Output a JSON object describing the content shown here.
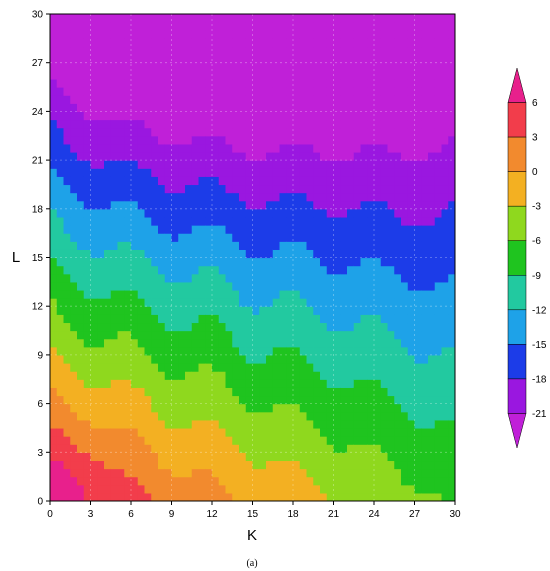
{
  "chart_data": {
    "type": "heatmap",
    "xlabel": "K",
    "ylabel": "L",
    "caption": "(a)",
    "xlim": [
      0,
      30
    ],
    "ylim": [
      0,
      30
    ],
    "xticks": [
      0,
      3,
      6,
      9,
      12,
      15,
      18,
      21,
      24,
      27,
      30
    ],
    "yticks": [
      0,
      3,
      6,
      9,
      12,
      15,
      18,
      21,
      24,
      27,
      30
    ],
    "colorbar": {
      "ticks": [
        6,
        3,
        0,
        -3,
        -6,
        -9,
        -12,
        -15,
        -18,
        -21
      ],
      "colors": [
        "#e8208c",
        "#f23d4b",
        "#f28a2e",
        "#f3b022",
        "#8fd81e",
        "#1fc41f",
        "#22c9a0",
        "#1ea2e8",
        "#1c3ce8",
        "#9a17e0",
        "#c020d8"
      ]
    },
    "field": {
      "description": "contour-filled surface; higher values at low L, lower values at high L and high K",
      "value_range": [
        -21,
        6
      ]
    }
  }
}
